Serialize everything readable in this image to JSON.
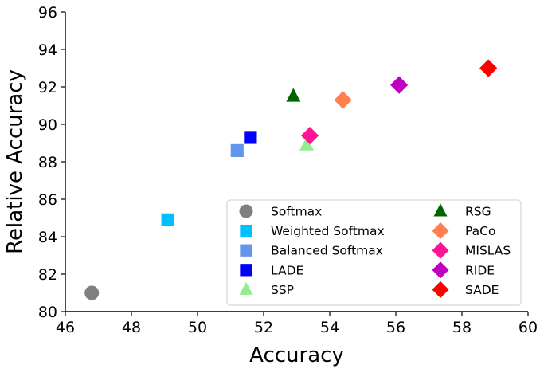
{
  "chart_data": {
    "type": "scatter",
    "title": "",
    "xlabel": "Accuracy",
    "ylabel": "Relative Accuracy",
    "xlim": [
      46,
      60
    ],
    "ylim": [
      80,
      96
    ],
    "xticks": [
      "46",
      "48",
      "50",
      "52",
      "54",
      "56",
      "58",
      "60"
    ],
    "yticks": [
      "80",
      "82",
      "84",
      "86",
      "88",
      "90",
      "92",
      "94",
      "96"
    ],
    "legend_position": "lower-right",
    "grid": false,
    "series": [
      {
        "name": "Softmax",
        "x": 46.8,
        "y": 81.0,
        "marker": "circle",
        "color": "#808080"
      },
      {
        "name": "Weighted Softmax",
        "x": 49.1,
        "y": 84.9,
        "marker": "square",
        "color": "#00bfff"
      },
      {
        "name": "Balanced Softmax",
        "x": 51.2,
        "y": 88.6,
        "marker": "square",
        "color": "#6495ed"
      },
      {
        "name": "LADE",
        "x": 51.6,
        "y": 89.3,
        "marker": "square",
        "color": "#0000ff"
      },
      {
        "name": "SSP",
        "x": 53.3,
        "y": 88.9,
        "marker": "triangle",
        "color": "#90ee90"
      },
      {
        "name": "RSG",
        "x": 52.9,
        "y": 91.5,
        "marker": "triangle",
        "color": "#006400"
      },
      {
        "name": "PaCo",
        "x": 54.4,
        "y": 91.3,
        "marker": "diamond",
        "color": "#ff7f50"
      },
      {
        "name": "MISLAS",
        "x": 53.4,
        "y": 89.4,
        "marker": "diamond",
        "color": "#ff1493"
      },
      {
        "name": "RIDE",
        "x": 56.1,
        "y": 92.1,
        "marker": "diamond",
        "color": "#c000c0"
      },
      {
        "name": "SADE",
        "x": 58.8,
        "y": 93.0,
        "marker": "diamond",
        "color": "#ff0000"
      }
    ]
  }
}
